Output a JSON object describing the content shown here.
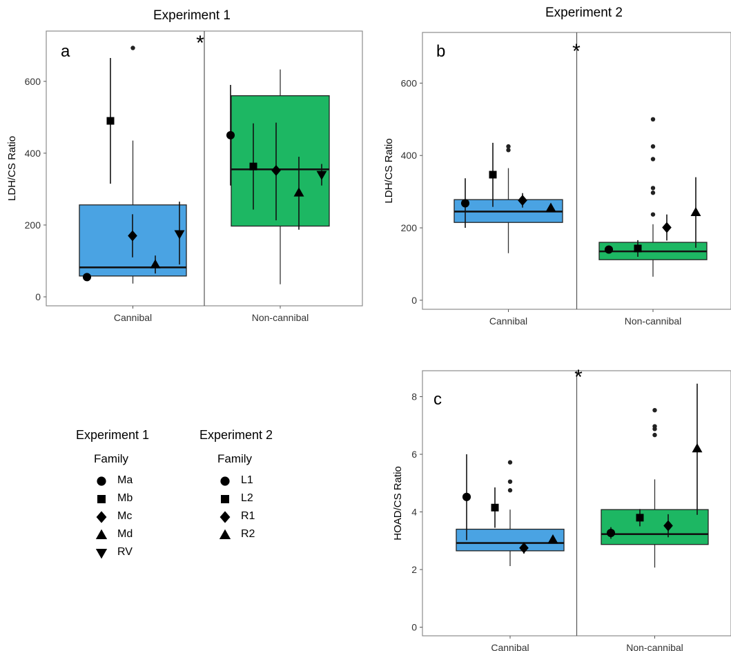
{
  "colors": {
    "cannibal": "#4aa3e3",
    "noncannibal": "#1db763",
    "marker": "#000000",
    "frame": "#8c8c8c"
  },
  "chart_data": [
    {
      "type": "box",
      "title": "Experiment 1",
      "panel_label": "a",
      "significance": "*",
      "xlabel": "",
      "ylabel": "LDH/CS Ratio",
      "ylim": [
        -25,
        740
      ],
      "yticks": [
        0,
        200,
        400,
        600
      ],
      "categories": [
        "Cannibal",
        "Non-cannibal"
      ],
      "boxes": [
        {
          "category": "Cannibal",
          "q1": 58,
          "median": 82,
          "q3": 256,
          "whisker_low": 37,
          "whisker_high": 435,
          "outliers": [
            693
          ]
        },
        {
          "category": "Non-cannibal",
          "q1": 197,
          "median": 355,
          "q3": 560,
          "whisker_low": 35,
          "whisker_high": 633,
          "outliers": []
        }
      ],
      "families": [
        {
          "category": "Cannibal",
          "family": "Ma",
          "mean": 55,
          "low": 55,
          "high": 55
        },
        {
          "category": "Cannibal",
          "family": "Mb",
          "mean": 490,
          "low": 315,
          "high": 665
        },
        {
          "category": "Cannibal",
          "family": "Mc",
          "mean": 170,
          "low": 110,
          "high": 230
        },
        {
          "category": "Cannibal",
          "family": "Md",
          "mean": 90,
          "low": 65,
          "high": 115
        },
        {
          "category": "Cannibal",
          "family": "RV",
          "mean": 175,
          "low": 90,
          "high": 265
        },
        {
          "category": "Non-cannibal",
          "family": "Ma",
          "mean": 450,
          "low": 310,
          "high": 590
        },
        {
          "category": "Non-cannibal",
          "family": "Mb",
          "mean": 363,
          "low": 243,
          "high": 483
        },
        {
          "category": "Non-cannibal",
          "family": "Mc",
          "mean": 352,
          "low": 213,
          "high": 485
        },
        {
          "category": "Non-cannibal",
          "family": "Md",
          "mean": 290,
          "low": 187,
          "high": 390
        },
        {
          "category": "Non-cannibal",
          "family": "RV",
          "mean": 340,
          "low": 310,
          "high": 370
        }
      ]
    },
    {
      "type": "box",
      "title": "Experiment 2",
      "panel_label": "b",
      "significance": "*",
      "xlabel": "",
      "ylabel": "LDH/CS Ratio",
      "ylim": [
        -25,
        740
      ],
      "yticks": [
        0,
        200,
        400,
        600
      ],
      "categories": [
        "Cannibal",
        "Non-cannibal"
      ],
      "boxes": [
        {
          "category": "Cannibal",
          "q1": 215,
          "median": 245,
          "q3": 278,
          "whisker_low": 130,
          "whisker_high": 365,
          "outliers": [
            415,
            425
          ]
        },
        {
          "category": "Non-cannibal",
          "q1": 112,
          "median": 135,
          "q3": 160,
          "whisker_low": 65,
          "whisker_high": 210,
          "outliers": [
            237,
            297,
            310,
            390,
            425,
            500
          ]
        }
      ],
      "families": [
        {
          "category": "Cannibal",
          "family": "L1",
          "mean": 268,
          "low": 200,
          "high": 337
        },
        {
          "category": "Cannibal",
          "family": "L2",
          "mean": 347,
          "low": 258,
          "high": 435
        },
        {
          "category": "Cannibal",
          "family": "R1",
          "mean": 276,
          "low": 256,
          "high": 296
        },
        {
          "category": "Cannibal",
          "family": "R2",
          "mean": 255,
          "low": 255,
          "high": 255
        },
        {
          "category": "Non-cannibal",
          "family": "L1",
          "mean": 140,
          "low": 140,
          "high": 140
        },
        {
          "category": "Non-cannibal",
          "family": "L2",
          "mean": 143,
          "low": 120,
          "high": 166
        },
        {
          "category": "Non-cannibal",
          "family": "R1",
          "mean": 201,
          "low": 165,
          "high": 237
        },
        {
          "category": "Non-cannibal",
          "family": "R2",
          "mean": 243,
          "low": 145,
          "high": 340
        }
      ]
    },
    {
      "type": "box",
      "title": "",
      "panel_label": "c",
      "significance": "*",
      "xlabel": "",
      "ylabel": "HOAD/CS Ratio",
      "ylim": [
        -0.3,
        8.9
      ],
      "yticks": [
        0,
        2,
        4,
        6,
        8
      ],
      "categories": [
        "Cannibal",
        "Non-cannibal"
      ],
      "boxes": [
        {
          "category": "Cannibal",
          "q1": 2.65,
          "median": 2.92,
          "q3": 3.4,
          "whisker_low": 2.12,
          "whisker_high": 4.08,
          "outliers": [
            4.75,
            5.05,
            5.72
          ]
        },
        {
          "category": "Non-cannibal",
          "q1": 2.87,
          "median": 3.23,
          "q3": 4.08,
          "whisker_low": 2.07,
          "whisker_high": 5.13,
          "outliers": [
            6.67,
            6.88,
            6.97,
            7.53
          ]
        }
      ],
      "families": [
        {
          "category": "Cannibal",
          "family": "L1",
          "mean": 4.52,
          "low": 3.02,
          "high": 6.0
        },
        {
          "category": "Cannibal",
          "family": "L2",
          "mean": 4.15,
          "low": 3.45,
          "high": 4.85
        },
        {
          "category": "Cannibal",
          "family": "R1",
          "mean": 2.75,
          "low": 2.55,
          "high": 2.95
        },
        {
          "category": "Cannibal",
          "family": "R2",
          "mean": 3.04,
          "low": 3.04,
          "high": 3.04
        },
        {
          "category": "Non-cannibal",
          "family": "L1",
          "mean": 3.27,
          "low": 3.07,
          "high": 3.47
        },
        {
          "category": "Non-cannibal",
          "family": "L2",
          "mean": 3.8,
          "low": 3.5,
          "high": 4.1
        },
        {
          "category": "Non-cannibal",
          "family": "R1",
          "mean": 3.52,
          "low": 3.12,
          "high": 3.92
        },
        {
          "category": "Non-cannibal",
          "family": "R2",
          "mean": 6.2,
          "low": 3.9,
          "high": 8.45
        }
      ]
    }
  ],
  "legend": {
    "exp1": {
      "title": "Experiment 1",
      "subtitle": "Family",
      "items": [
        {
          "label": "Ma",
          "shape": "circle"
        },
        {
          "label": "Mb",
          "shape": "square"
        },
        {
          "label": "Mc",
          "shape": "diamond"
        },
        {
          "label": "Md",
          "shape": "triangle-up"
        },
        {
          "label": "RV",
          "shape": "triangle-down"
        }
      ]
    },
    "exp2": {
      "title": "Experiment 2",
      "subtitle": "Family",
      "items": [
        {
          "label": "L1",
          "shape": "circle"
        },
        {
          "label": "L2",
          "shape": "square"
        },
        {
          "label": "R1",
          "shape": "diamond"
        },
        {
          "label": "R2",
          "shape": "triangle-up"
        }
      ]
    }
  }
}
